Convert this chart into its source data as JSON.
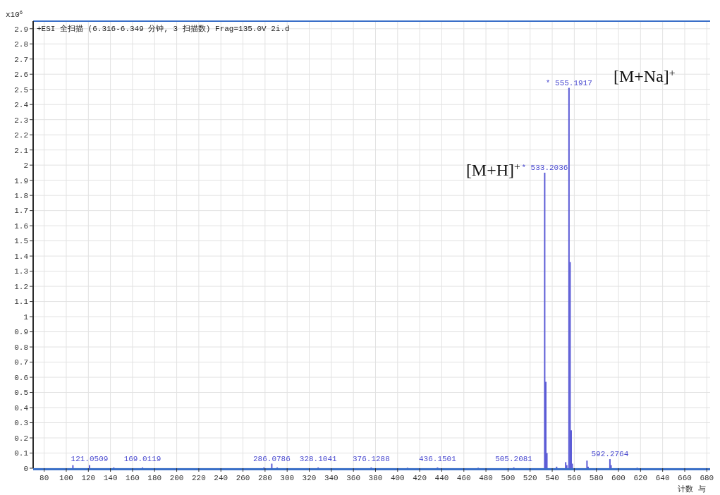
{
  "chart_data": {
    "type": "bar",
    "title": "+ESI 全扫描 (6.316-6.349 分钟, 3 扫描数) Frag=135.0V 2i.d",
    "ylabel": "x10$^{6}$",
    "xlabel": "计数 与",
    "x": [
      106.0,
      121.0509,
      143.0,
      169.0119,
      279.0,
      286.0786,
      291.0,
      328.1041,
      376.1288,
      409.0,
      436.1501,
      473.0,
      505.2081,
      533.2036,
      534.2,
      535.2,
      544.0,
      552.2,
      553.2,
      555.1917,
      556.2,
      557.2,
      558.2,
      571.5,
      572.5,
      592.2764,
      593.3,
      617.0
    ],
    "values": [
      0.02,
      0.02,
      0.005,
      0.005,
      0.005,
      0.03,
      0.005,
      0.005,
      0.005,
      0.003,
      0.005,
      0.003,
      0.005,
      1.95,
      0.57,
      0.1,
      0.01,
      0.04,
      0.02,
      2.51,
      1.36,
      0.25,
      0.03,
      0.05,
      0.01,
      0.06,
      0.02,
      0.003
    ],
    "color": "#5c5cd6",
    "annotations": [
      "[M+H]$^{+}$",
      "[M+Na]$^{+}$",
      {
        "text": "121.0509",
        "x": 121.0509,
        "y": 0.02
      },
      {
        "text": "169.0119",
        "x": 169.0119,
        "y": 0.005
      },
      {
        "text": "286.0786",
        "x": 286.0786,
        "y": 0.03
      },
      {
        "text": "328.1041",
        "x": 328.1041,
        "y": 0.005
      },
      {
        "text": "376.1288",
        "x": 376.1288,
        "y": 0.005
      },
      {
        "text": "436.1501",
        "x": 436.1501,
        "y": 0.005
      },
      {
        "text": "505.2081",
        "x": 505.2081,
        "y": 0.005
      },
      {
        "text": "* 533.2036",
        "x": 533.2036,
        "y": 1.95
      },
      {
        "text": "* 555.1917",
        "x": 555.1917,
        "y": 2.51
      },
      {
        "text": "592.2764",
        "x": 592.2764,
        "y": 0.06
      }
    ],
    "xlim": [
      70,
      683
    ],
    "xticks": [
      80,
      100,
      120,
      140,
      160,
      180,
      200,
      220,
      240,
      260,
      280,
      300,
      320,
      340,
      360,
      380,
      400,
      420,
      440,
      460,
      480,
      500,
      520,
      540,
      560,
      580,
      600,
      620,
      640,
      660,
      680
    ],
    "ylim": [
      0,
      2.95
    ],
    "yticks": [
      0,
      0.1,
      0.2,
      0.3,
      0.4,
      0.5,
      0.6,
      0.7,
      0.8,
      0.9,
      1,
      1.1,
      1.2,
      1.3,
      1.4,
      1.5,
      1.6,
      1.7,
      1.8,
      1.9,
      2,
      2.1,
      2.2,
      2.3,
      2.4,
      2.5,
      2.6,
      2.7,
      2.8,
      2.9
    ],
    "grid": true
  }
}
